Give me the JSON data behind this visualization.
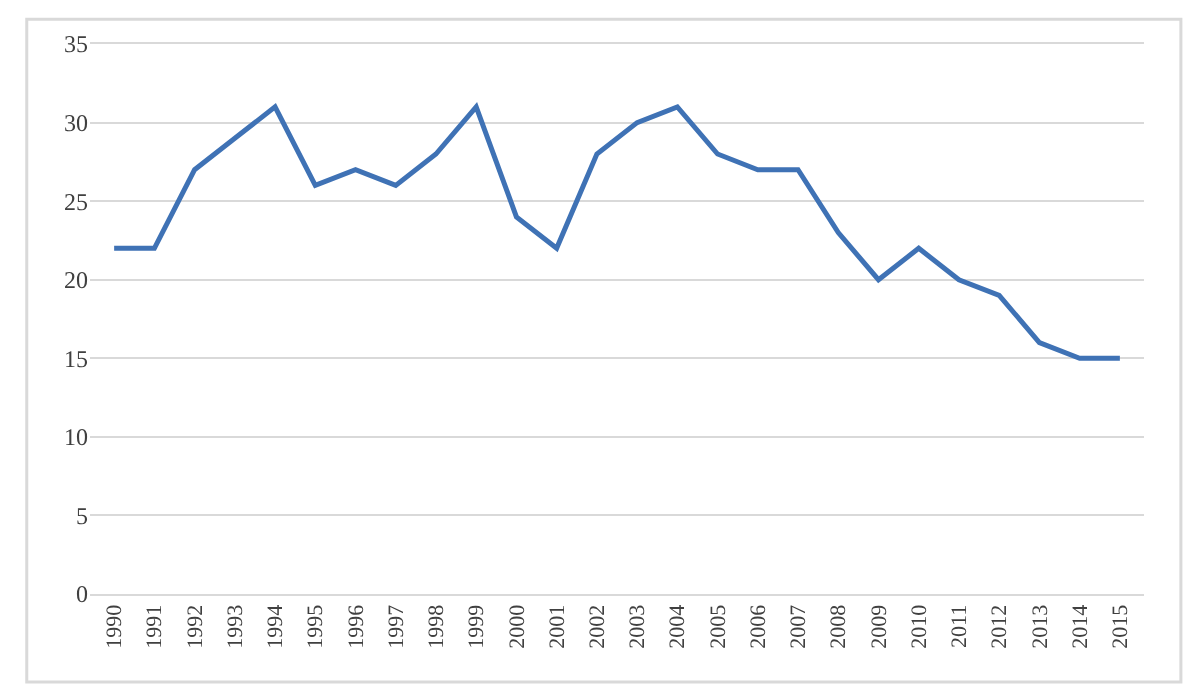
{
  "chart_data": {
    "type": "line",
    "categories": [
      "1990",
      "1991",
      "1992",
      "1993",
      "1994",
      "1995",
      "1996",
      "1997",
      "1998",
      "1999",
      "2000",
      "2001",
      "2002",
      "2003",
      "2004",
      "2005",
      "2006",
      "2007",
      "2008",
      "2009",
      "2010",
      "2011",
      "2012",
      "2013",
      "2014",
      "2015"
    ],
    "series": [
      {
        "color": "#3f72b5",
        "values": [
          22,
          22,
          27,
          29,
          31,
          26,
          27,
          26,
          28,
          31,
          24,
          22,
          28,
          30,
          31,
          28,
          27,
          27,
          23,
          20,
          22,
          20,
          19,
          16,
          15,
          15
        ]
      }
    ],
    "ylim": [
      0,
      35
    ],
    "yticks": [
      0,
      5,
      10,
      15,
      20,
      25,
      30,
      35
    ],
    "grid": "y",
    "marker": "none",
    "line_style": "solid"
  }
}
